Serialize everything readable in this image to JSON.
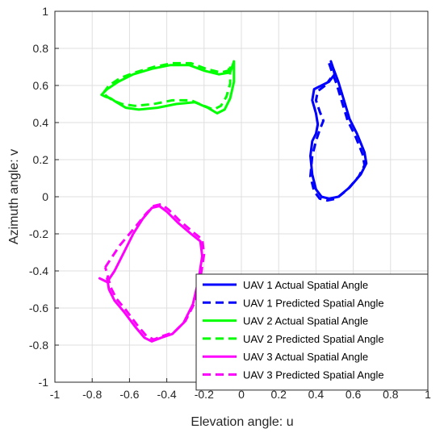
{
  "chart_data": {
    "type": "line",
    "xlabel": "Elevation angle: u",
    "ylabel": "Azimuth angle: v",
    "xlim": [
      -1,
      1
    ],
    "ylim": [
      -1,
      1
    ],
    "xticks": [
      "-1",
      "-0.8",
      "-0.6",
      "-0.4",
      "-0.2",
      "0",
      "0.2",
      "0.4",
      "0.6",
      "0.8",
      "1"
    ],
    "yticks": [
      "-1",
      "-0.8",
      "-0.6",
      "-0.4",
      "-0.2",
      "0",
      "0.2",
      "0.4",
      "0.6",
      "0.8",
      "1"
    ],
    "grid": true,
    "legend_position": "bottom-right",
    "series": [
      {
        "name": "UAV 1 Actual Spatial Angle",
        "color": "#0000ff",
        "style": "solid",
        "x": [
          0.48,
          0.49,
          0.52,
          0.55,
          0.58,
          0.62,
          0.66,
          0.67,
          0.64,
          0.58,
          0.52,
          0.47,
          0.43,
          0.4,
          0.38,
          0.37,
          0.38,
          0.4,
          0.41,
          0.4,
          0.38,
          0.39,
          0.43,
          0.47,
          0.5,
          0.49,
          0.48
        ],
        "y": [
          0.73,
          0.7,
          0.62,
          0.52,
          0.42,
          0.34,
          0.24,
          0.18,
          0.12,
          0.05,
          0.0,
          -0.01,
          0.0,
          0.04,
          0.12,
          0.22,
          0.3,
          0.34,
          0.39,
          0.45,
          0.52,
          0.58,
          0.6,
          0.62,
          0.66,
          0.7,
          0.73
        ]
      },
      {
        "name": "UAV 1 Predicted Spatial Angle",
        "color": "#0000ff",
        "style": "dashed",
        "x": [
          0.47,
          0.48,
          0.51,
          0.54,
          0.57,
          0.61,
          0.65,
          0.66,
          0.63,
          0.57,
          0.51,
          0.46,
          0.42,
          0.39,
          0.37,
          0.38,
          0.4,
          0.42,
          0.44,
          0.42,
          0.4,
          0.41,
          0.45,
          0.48
        ],
        "y": [
          0.72,
          0.69,
          0.61,
          0.51,
          0.41,
          0.33,
          0.23,
          0.17,
          0.11,
          0.04,
          -0.01,
          -0.02,
          -0.01,
          0.03,
          0.11,
          0.22,
          0.3,
          0.36,
          0.41,
          0.46,
          0.52,
          0.57,
          0.6,
          0.64
        ]
      },
      {
        "name": "UAV 2 Actual Spatial Angle",
        "color": "#00ff00",
        "style": "solid",
        "x": [
          -0.75,
          -0.72,
          -0.66,
          -0.58,
          -0.48,
          -0.38,
          -0.28,
          -0.2,
          -0.12,
          -0.06,
          -0.04,
          -0.04,
          -0.06,
          -0.09,
          -0.13,
          -0.18,
          -0.25,
          -0.35,
          -0.45,
          -0.55,
          -0.62,
          -0.67,
          -0.7,
          -0.73,
          -0.75
        ],
        "y": [
          0.55,
          0.58,
          0.62,
          0.66,
          0.69,
          0.71,
          0.71,
          0.68,
          0.66,
          0.67,
          0.73,
          0.62,
          0.53,
          0.47,
          0.45,
          0.48,
          0.51,
          0.5,
          0.48,
          0.47,
          0.48,
          0.51,
          0.53,
          0.54,
          0.55
        ]
      },
      {
        "name": "UAV 2 Predicted Spatial Angle",
        "color": "#00ff00",
        "style": "dashed",
        "x": [
          -0.74,
          -0.71,
          -0.65,
          -0.57,
          -0.47,
          -0.37,
          -0.27,
          -0.19,
          -0.11,
          -0.07,
          -0.06,
          -0.06,
          -0.08,
          -0.11,
          -0.15,
          -0.2,
          -0.27,
          -0.37,
          -0.47,
          -0.57,
          -0.64,
          -0.69,
          -0.72,
          -0.74
        ],
        "y": [
          0.56,
          0.6,
          0.64,
          0.67,
          0.7,
          0.72,
          0.72,
          0.69,
          0.67,
          0.68,
          0.71,
          0.61,
          0.54,
          0.49,
          0.47,
          0.49,
          0.52,
          0.52,
          0.5,
          0.49,
          0.5,
          0.52,
          0.54,
          0.56
        ]
      },
      {
        "name": "UAV 3 Actual Spatial Angle",
        "color": "#ff00ff",
        "style": "solid",
        "x": [
          -0.76,
          -0.72,
          -0.68,
          -0.63,
          -0.58,
          -0.53,
          -0.48,
          -0.44,
          -0.4,
          -0.34,
          -0.27,
          -0.22,
          -0.21,
          -0.23,
          -0.26,
          -0.31,
          -0.37,
          -0.43,
          -0.48,
          -0.52,
          -0.57,
          -0.63,
          -0.68,
          -0.71,
          -0.72
        ],
        "y": [
          -0.44,
          -0.46,
          -0.4,
          -0.3,
          -0.2,
          -0.12,
          -0.06,
          -0.05,
          -0.08,
          -0.14,
          -0.2,
          -0.24,
          -0.32,
          -0.45,
          -0.58,
          -0.68,
          -0.74,
          -0.76,
          -0.78,
          -0.76,
          -0.7,
          -0.62,
          -0.56,
          -0.5,
          -0.44
        ]
      },
      {
        "name": "UAV 3 Predicted Spatial Angle",
        "color": "#ff00ff",
        "style": "dashed",
        "x": [
          -0.73,
          -0.69,
          -0.65,
          -0.6,
          -0.55,
          -0.51,
          -0.47,
          -0.43,
          -0.39,
          -0.33,
          -0.26,
          -0.21,
          -0.2,
          -0.22,
          -0.25,
          -0.3,
          -0.36,
          -0.42,
          -0.47,
          -0.51,
          -0.56,
          -0.62,
          -0.67,
          -0.7,
          -0.73
        ],
        "y": [
          -0.38,
          -0.32,
          -0.26,
          -0.2,
          -0.14,
          -0.09,
          -0.05,
          -0.04,
          -0.07,
          -0.13,
          -0.19,
          -0.23,
          -0.31,
          -0.44,
          -0.57,
          -0.67,
          -0.73,
          -0.75,
          -0.77,
          -0.75,
          -0.69,
          -0.61,
          -0.55,
          -0.49,
          -0.38
        ]
      }
    ]
  }
}
